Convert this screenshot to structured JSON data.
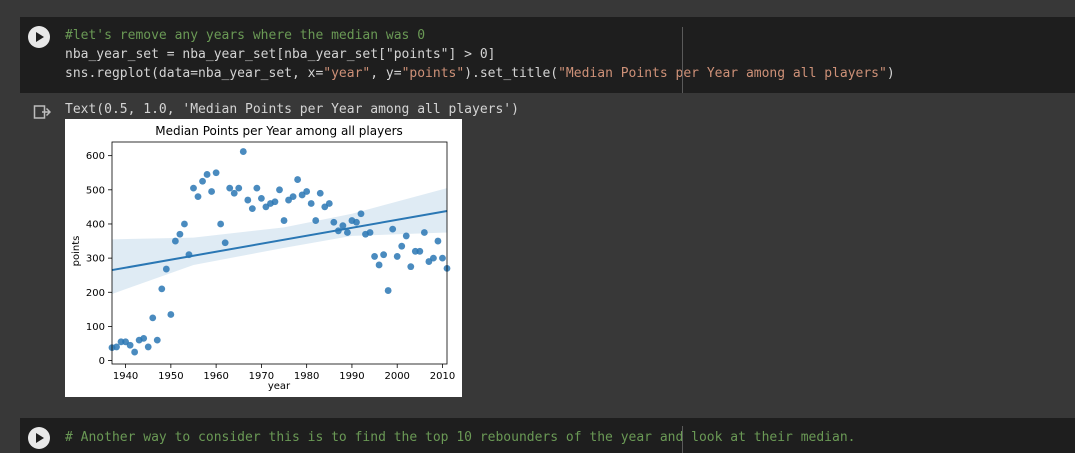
{
  "cell1": {
    "code_line1": "#let's remove any years where the median was 0",
    "code_line2": "nba_year_set = nba_year_set[nba_year_set[\"points\"] > 0]",
    "code_line3_a": "sns.regplot(data=nba_year_set, x=",
    "code_line3_b": "\"year\"",
    "code_line3_c": ", y=",
    "code_line3_d": "\"points\"",
    "code_line3_e": ").set_title(",
    "code_line3_f": "\"Median Points per Year among all players\"",
    "code_line3_g": ")"
  },
  "output": {
    "text": "Text(0.5, 1.0, 'Median Points per Year among all players')"
  },
  "cell2": {
    "code_line1": "# Another way to consider this is to find the top 10 rebounders of the year and look at their median."
  },
  "colors": {
    "accent": "#2a77b4",
    "code_comment": "#6a9955",
    "code_string": "#ce9178"
  },
  "chart_data": {
    "type": "scatter",
    "title": "Median Points per Year among all players",
    "xlabel": "year",
    "ylabel": "points",
    "xlim": [
      1937,
      2011
    ],
    "ylim": [
      -10,
      640
    ],
    "xticks": [
      1940,
      1950,
      1960,
      1970,
      1980,
      1990,
      2000,
      2010
    ],
    "yticks": [
      0,
      100,
      200,
      300,
      400,
      500,
      600
    ],
    "grid": false,
    "regression": {
      "x": [
        1937,
        2011
      ],
      "y": [
        265,
        438
      ]
    },
    "confidence_band": {
      "x": [
        1937,
        1955,
        1975,
        1990,
        2011
      ],
      "upper": [
        355,
        360,
        390,
        430,
        505
      ],
      "lower": [
        195,
        280,
        330,
        365,
        375
      ]
    },
    "points": [
      [
        1937,
        38
      ],
      [
        1938,
        40
      ],
      [
        1939,
        55
      ],
      [
        1940,
        55
      ],
      [
        1941,
        45
      ],
      [
        1942,
        25
      ],
      [
        1943,
        60
      ],
      [
        1944,
        65
      ],
      [
        1945,
        40
      ],
      [
        1946,
        125
      ],
      [
        1947,
        60
      ],
      [
        1948,
        210
      ],
      [
        1949,
        268
      ],
      [
        1950,
        135
      ],
      [
        1951,
        350
      ],
      [
        1952,
        370
      ],
      [
        1953,
        400
      ],
      [
        1954,
        310
      ],
      [
        1955,
        505
      ],
      [
        1956,
        480
      ],
      [
        1957,
        525
      ],
      [
        1958,
        545
      ],
      [
        1959,
        495
      ],
      [
        1960,
        550
      ],
      [
        1961,
        400
      ],
      [
        1962,
        345
      ],
      [
        1963,
        505
      ],
      [
        1964,
        490
      ],
      [
        1965,
        505
      ],
      [
        1966,
        612
      ],
      [
        1967,
        470
      ],
      [
        1968,
        445
      ],
      [
        1969,
        505
      ],
      [
        1970,
        475
      ],
      [
        1971,
        450
      ],
      [
        1972,
        460
      ],
      [
        1973,
        465
      ],
      [
        1974,
        500
      ],
      [
        1975,
        410
      ],
      [
        1976,
        470
      ],
      [
        1977,
        480
      ],
      [
        1978,
        530
      ],
      [
        1979,
        485
      ],
      [
        1980,
        495
      ],
      [
        1981,
        460
      ],
      [
        1982,
        410
      ],
      [
        1983,
        490
      ],
      [
        1984,
        450
      ],
      [
        1985,
        460
      ],
      [
        1986,
        405
      ],
      [
        1987,
        380
      ],
      [
        1988,
        395
      ],
      [
        1989,
        375
      ],
      [
        1990,
        410
      ],
      [
        1991,
        405
      ],
      [
        1992,
        430
      ],
      [
        1993,
        370
      ],
      [
        1994,
        375
      ],
      [
        1995,
        305
      ],
      [
        1996,
        280
      ],
      [
        1997,
        310
      ],
      [
        1998,
        205
      ],
      [
        1999,
        385
      ],
      [
        2000,
        305
      ],
      [
        2001,
        335
      ],
      [
        2002,
        365
      ],
      [
        2003,
        275
      ],
      [
        2004,
        320
      ],
      [
        2005,
        320
      ],
      [
        2006,
        375
      ],
      [
        2007,
        290
      ],
      [
        2008,
        300
      ],
      [
        2009,
        350
      ],
      [
        2010,
        300
      ],
      [
        2011,
        270
      ]
    ]
  }
}
